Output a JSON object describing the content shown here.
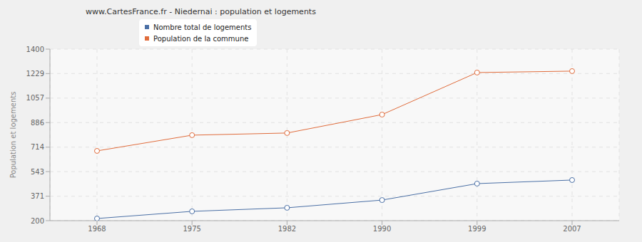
{
  "chart_data": {
    "type": "line",
    "title": "www.CartesFrance.fr - Niedernai : population et logements",
    "y_label": "Population et logements",
    "categories": [
      "1968",
      "1975",
      "1982",
      "1990",
      "1999",
      "2007"
    ],
    "series": [
      {
        "name": "Nombre total de logements",
        "color": "#4a6fa5",
        "marker": "circle",
        "values": [
          215,
          265,
          290,
          344,
          459,
          484
        ]
      },
      {
        "name": "Population de la commune",
        "color": "#e06c3c",
        "marker": "circle",
        "values": [
          688,
          798,
          813,
          942,
          1236,
          1246
        ]
      }
    ],
    "ylim": [
      200,
      1400
    ],
    "yticks": [
      200,
      371,
      543,
      714,
      886,
      1057,
      1229,
      1400
    ],
    "grid": true,
    "legend": "top-left"
  }
}
